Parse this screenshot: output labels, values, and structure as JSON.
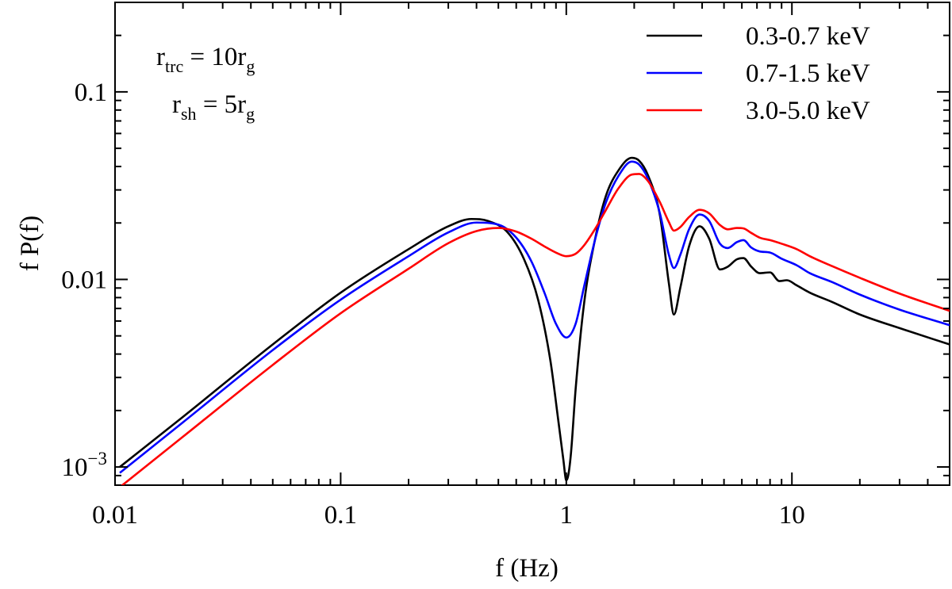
{
  "chart_data": {
    "type": "line",
    "title": "",
    "xlabel": "f (Hz)",
    "ylabel": "f P(f)",
    "xscale": "log",
    "yscale": "log",
    "xlim": [
      0.01,
      50
    ],
    "ylim": [
      0.0008,
      0.3
    ],
    "x_ticks": [
      {
        "value": 0.01,
        "label": "0.01"
      },
      {
        "value": 0.1,
        "label": "0.1"
      },
      {
        "value": 1,
        "label": "1"
      },
      {
        "value": 10,
        "label": "10"
      }
    ],
    "y_ticks": [
      {
        "value": 0.001,
        "base": "10",
        "exp": "−3"
      },
      {
        "value": 0.01,
        "label": "0.01"
      },
      {
        "value": 0.1,
        "label": "0.1"
      }
    ],
    "grid": false,
    "legend_position": "top-right",
    "annotations": [
      {
        "main": "r",
        "sub": "trc",
        "rest": " = 10r",
        "sub2": "g"
      },
      {
        "main": "r",
        "sub": "sh",
        "rest": " = 5r",
        "sub2": "g"
      }
    ],
    "series": [
      {
        "name": "0.3-0.7 keV",
        "color": "#000000",
        "x": [
          0.0105,
          0.02,
          0.05,
          0.1,
          0.2,
          0.3,
          0.38,
          0.45,
          0.55,
          0.65,
          0.75,
          0.85,
          0.92,
          0.97,
          1.0,
          1.02,
          1.05,
          1.1,
          1.2,
          1.35,
          1.5,
          1.7,
          1.95,
          2.1,
          2.3,
          2.6,
          2.85,
          3.0,
          3.2,
          3.5,
          3.9,
          4.3,
          4.8,
          5.2,
          5.7,
          6.1,
          6.6,
          7.2,
          8.0,
          8.8,
          9.5,
          10.5,
          12,
          15,
          20,
          30,
          50
        ],
        "y": [
          0.001,
          0.00185,
          0.0045,
          0.0085,
          0.0145,
          0.0192,
          0.021,
          0.0205,
          0.0178,
          0.0128,
          0.0078,
          0.0037,
          0.0018,
          0.0011,
          0.00085,
          0.0009,
          0.0012,
          0.0026,
          0.0075,
          0.017,
          0.028,
          0.038,
          0.0445,
          0.043,
          0.036,
          0.022,
          0.0095,
          0.0065,
          0.009,
          0.015,
          0.0192,
          0.0165,
          0.0113,
          0.0117,
          0.0128,
          0.013,
          0.0117,
          0.0108,
          0.0109,
          0.0098,
          0.0099,
          0.0093,
          0.0085,
          0.0076,
          0.0065,
          0.0055,
          0.0045
        ]
      },
      {
        "name": "0.7-1.5 keV",
        "color": "#0000ff",
        "x": [
          0.0105,
          0.02,
          0.05,
          0.1,
          0.2,
          0.3,
          0.4,
          0.5,
          0.6,
          0.7,
          0.8,
          0.9,
          1.0,
          1.1,
          1.2,
          1.35,
          1.5,
          1.7,
          1.95,
          2.1,
          2.3,
          2.6,
          2.85,
          3.0,
          3.2,
          3.5,
          3.9,
          4.3,
          4.8,
          5.2,
          5.7,
          6.1,
          6.6,
          7.2,
          8.0,
          9.0,
          10.5,
          12,
          15,
          20,
          30,
          50
        ],
        "y": [
          0.00093,
          0.00173,
          0.0042,
          0.0078,
          0.0133,
          0.0178,
          0.0201,
          0.0196,
          0.0167,
          0.0125,
          0.0085,
          0.0058,
          0.0049,
          0.0058,
          0.0092,
          0.0168,
          0.0258,
          0.0355,
          0.0425,
          0.041,
          0.0345,
          0.0225,
          0.0135,
          0.0115,
          0.0135,
          0.0185,
          0.0222,
          0.0205,
          0.0155,
          0.0147,
          0.0158,
          0.0162,
          0.0148,
          0.0141,
          0.0139,
          0.0129,
          0.0119,
          0.0108,
          0.0097,
          0.0083,
          0.0069,
          0.0057
        ]
      },
      {
        "name": "3.0-5.0 keV",
        "color": "#ff0000",
        "x": [
          0.0105,
          0.02,
          0.05,
          0.1,
          0.2,
          0.3,
          0.4,
          0.5,
          0.6,
          0.7,
          0.8,
          0.9,
          1.0,
          1.1,
          1.2,
          1.35,
          1.5,
          1.7,
          1.95,
          2.1,
          2.3,
          2.6,
          2.85,
          3.0,
          3.2,
          3.5,
          3.9,
          4.3,
          4.8,
          5.2,
          5.7,
          6.1,
          6.6,
          7.2,
          8.0,
          9.0,
          10.5,
          12,
          15,
          20,
          30,
          50
        ],
        "y": [
          0.00078,
          0.00145,
          0.0035,
          0.0066,
          0.0114,
          0.0156,
          0.0181,
          0.0188,
          0.018,
          0.0165,
          0.015,
          0.0139,
          0.0133,
          0.0137,
          0.0152,
          0.0188,
          0.0235,
          0.0305,
          0.0362,
          0.0365,
          0.0335,
          0.0258,
          0.0202,
          0.0182,
          0.019,
          0.0215,
          0.0235,
          0.0225,
          0.0195,
          0.0185,
          0.0188,
          0.0187,
          0.0177,
          0.0167,
          0.0162,
          0.0155,
          0.0145,
          0.0133,
          0.0118,
          0.0102,
          0.0084,
          0.0068
        ]
      }
    ]
  }
}
